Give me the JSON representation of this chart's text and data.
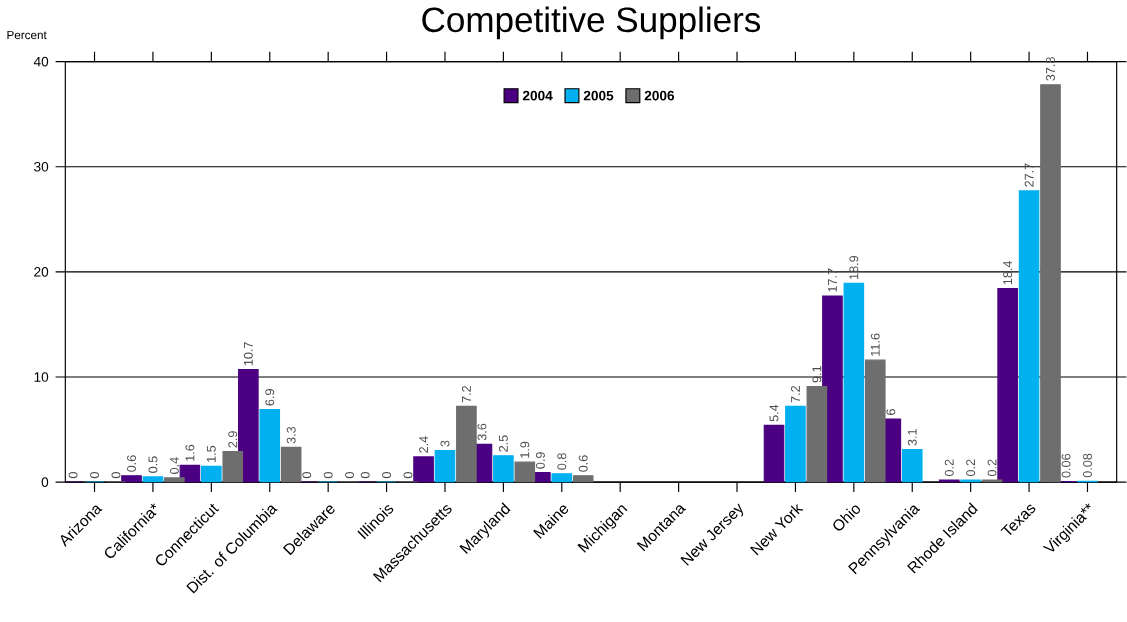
{
  "chart_data": {
    "type": "bar",
    "title": "Competitive Suppliers",
    "ylabel": "Percent",
    "categories": [
      "Arizona",
      "California*",
      "Connecticut",
      "Dist. of Columbia",
      "Delaware",
      "Illinois",
      "Massachusetts",
      "Maryland",
      "Maine",
      "Michigan",
      "Montana",
      "New Jersey",
      "New York",
      "Ohio",
      "Pennsylvania",
      "Rhode Island",
      "Texas",
      "Virginia**"
    ],
    "series": [
      {
        "name": "2004",
        "color": "#4b0082",
        "values": [
          0,
          0.6,
          1.6,
          10.7,
          0,
          0,
          2.4,
          3.6,
          0.9,
          null,
          null,
          null,
          5.4,
          17.7,
          6,
          0.2,
          18.4,
          0.06
        ]
      },
      {
        "name": "2005",
        "color": "#00b0f0",
        "values": [
          0,
          0.5,
          1.5,
          6.9,
          0,
          0,
          3,
          2.5,
          0.8,
          null,
          null,
          null,
          7.2,
          18.9,
          3.1,
          0.2,
          27.7,
          0.08
        ]
      },
      {
        "name": "2006",
        "color": "#6e6e6e",
        "values": [
          0,
          0.4,
          2.9,
          3.3,
          0,
          0,
          7.2,
          1.9,
          0.6,
          null,
          null,
          null,
          9.1,
          11.6,
          null,
          0.2,
          37.8,
          null
        ]
      }
    ],
    "ylim": [
      0,
      40
    ],
    "yticks": [
      0,
      10,
      20,
      30,
      40
    ],
    "grid": "y",
    "legend": "top",
    "data_labels": true
  }
}
